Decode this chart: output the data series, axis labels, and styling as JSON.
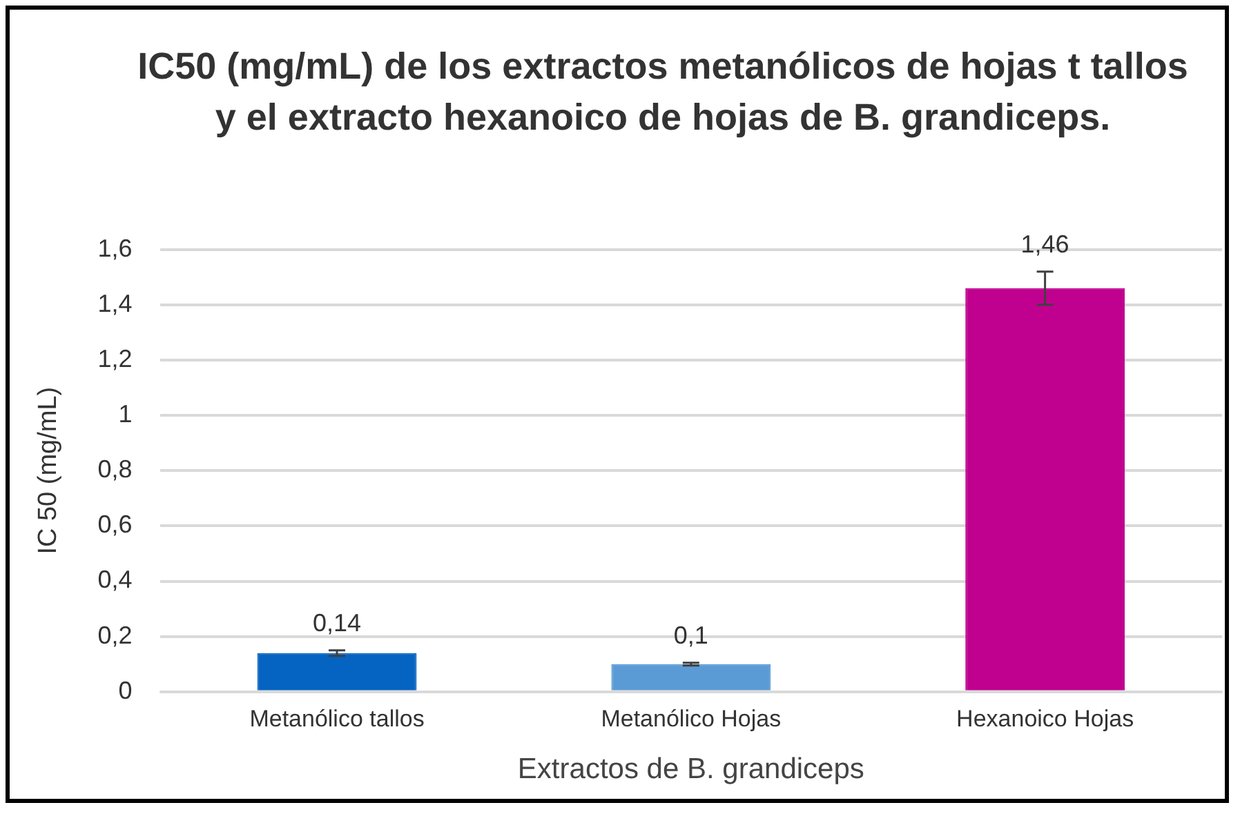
{
  "chart_data": {
    "type": "bar",
    "title": "IC50 (mg/mL) de los extractos metanólicos de hojas t tallos y el extracto hexanoico de hojas de B. grandiceps.",
    "xlabel": "Extractos de B. grandiceps",
    "ylabel": "IC 50 (mg/mL)",
    "categories": [
      "Metanólico tallos",
      "Metanólico Hojas",
      "Hexanoico Hojas"
    ],
    "values": [
      0.14,
      0.1,
      1.46
    ],
    "colors": [
      "#0563c1",
      "#5b9bd5",
      "#c0008f"
    ],
    "errors": [
      0.01,
      0.005,
      0.06
    ],
    "value_labels": [
      "0,14",
      "0,1",
      "1,46"
    ],
    "ylim": [
      0,
      1.6
    ],
    "yticks": [
      0,
      {
        "value": 0.2,
        "label": "0,2"
      },
      {
        "value": 0.4,
        "label": "0,4"
      },
      {
        "value": 0.6,
        "label": "0,6"
      },
      {
        "value": 0.8,
        "label": "0,8"
      },
      1,
      {
        "value": 1.2,
        "label": "1,2"
      },
      {
        "value": 1.4,
        "label": "1,4"
      },
      {
        "value": 1.6,
        "label": "1,6"
      }
    ],
    "grid": "y",
    "legend": false
  }
}
